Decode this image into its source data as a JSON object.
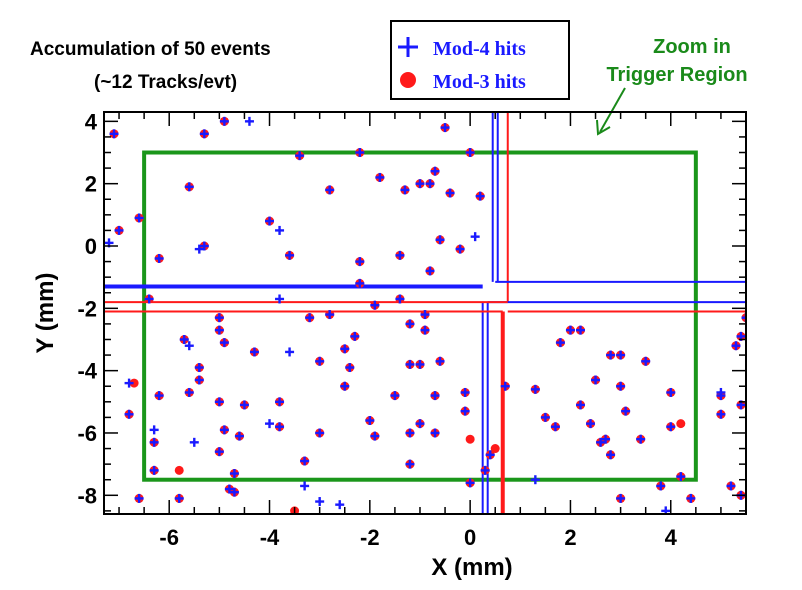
{
  "chart_data": {
    "type": "scatter",
    "xlabel": "X (mm)",
    "ylabel": "Y (mm)",
    "xlim": [
      -7.3,
      5.5
    ],
    "ylim": [
      -8.6,
      4.3
    ],
    "x_ticks": [
      -6,
      -4,
      -2,
      0,
      2,
      4
    ],
    "y_ticks": [
      4,
      2,
      0,
      -2,
      -4,
      -6,
      -8
    ],
    "x_tick_labels": [
      "-6",
      "-4",
      "-2",
      "0",
      "2",
      "4"
    ],
    "y_tick_labels": [
      "4",
      "2",
      "0",
      "-2",
      "-4",
      "-6",
      "-8"
    ],
    "grid": false,
    "annotation_lines": [
      "Accumulation of 50 events",
      "(~12 Tracks/evt)"
    ],
    "legend": {
      "position": "top-center",
      "entries": [
        {
          "label": "Mod-4 hits",
          "marker": "plus",
          "color": "#1a1aff"
        },
        {
          "label": "Mod-3 hits",
          "marker": "circle",
          "color": "#ff1a1a"
        }
      ]
    },
    "zoom_label_lines": [
      "Zoom in",
      "Trigger Region"
    ],
    "colors": {
      "mod4": "#1a1aff",
      "mod3": "#ff1a1a",
      "region": "#1a961a"
    },
    "trigger_region": {
      "x0": -6.5,
      "x1": 4.5,
      "y0": -7.5,
      "y1": 3.0
    },
    "series": [
      {
        "name": "Mod-4 hits",
        "marker": "plus",
        "points": [
          [
            -7.1,
            3.6
          ],
          [
            -5.3,
            3.6
          ],
          [
            -4.9,
            4.0
          ],
          [
            -4.4,
            4.0
          ],
          [
            -3.4,
            2.9
          ],
          [
            -2.2,
            3.0
          ],
          [
            -0.5,
            3.8
          ],
          [
            0.0,
            3.0
          ],
          [
            -5.6,
            1.9
          ],
          [
            -2.8,
            1.8
          ],
          [
            -1.8,
            2.2
          ],
          [
            -1.3,
            1.8
          ],
          [
            -1.0,
            2.0
          ],
          [
            -0.8,
            2.0
          ],
          [
            -0.7,
            2.4
          ],
          [
            -0.4,
            1.7
          ],
          [
            0.2,
            1.6
          ],
          [
            -7.2,
            0.1
          ],
          [
            -7.0,
            0.5
          ],
          [
            -6.6,
            0.9
          ],
          [
            -6.2,
            -0.4
          ],
          [
            -5.4,
            -0.1
          ],
          [
            -5.3,
            0.0
          ],
          [
            -4.0,
            0.8
          ],
          [
            -3.8,
            0.5
          ],
          [
            -3.6,
            -0.3
          ],
          [
            -2.2,
            -0.5
          ],
          [
            -1.4,
            -0.3
          ],
          [
            -0.8,
            -0.8
          ],
          [
            -0.6,
            0.2
          ],
          [
            -0.2,
            -0.1
          ],
          [
            0.1,
            0.3
          ],
          [
            -2.2,
            -1.2
          ],
          [
            -6.4,
            -1.7
          ],
          [
            -3.8,
            -1.7
          ],
          [
            -3.2,
            -2.3
          ],
          [
            -2.8,
            -2.2
          ],
          [
            -1.9,
            -1.9
          ],
          [
            -1.4,
            -1.7
          ],
          [
            -0.9,
            -2.2
          ],
          [
            -5.0,
            -2.3
          ],
          [
            -5.7,
            -3.0
          ],
          [
            -5.6,
            -3.2
          ],
          [
            -5.0,
            -2.7
          ],
          [
            -4.9,
            -3.1
          ],
          [
            -4.3,
            -3.4
          ],
          [
            -3.6,
            -3.4
          ],
          [
            -3.0,
            -3.7
          ],
          [
            -2.5,
            -3.3
          ],
          [
            -2.3,
            -2.9
          ],
          [
            -1.2,
            -2.5
          ],
          [
            -0.9,
            -2.7
          ],
          [
            -1.2,
            -3.8
          ],
          [
            -0.6,
            -3.7
          ],
          [
            -5.4,
            -3.9
          ],
          [
            -2.4,
            -3.9
          ],
          [
            -1.0,
            -3.8
          ],
          [
            -6.8,
            -4.4
          ],
          [
            -6.2,
            -4.8
          ],
          [
            -5.6,
            -4.7
          ],
          [
            -5.4,
            -4.3
          ],
          [
            -4.5,
            -5.1
          ],
          [
            -3.8,
            -5.0
          ],
          [
            -2.5,
            -4.5
          ],
          [
            -1.5,
            -4.8
          ],
          [
            -0.7,
            -4.8
          ],
          [
            -0.1,
            -4.7
          ],
          [
            -6.8,
            -5.4
          ],
          [
            -5.0,
            -5.0
          ],
          [
            -4.0,
            -5.7
          ],
          [
            -3.8,
            -5.8
          ],
          [
            -2.0,
            -5.6
          ],
          [
            -1.0,
            -5.7
          ],
          [
            -0.1,
            -5.3
          ],
          [
            -6.3,
            -5.9
          ],
          [
            -6.3,
            -6.3
          ],
          [
            -5.5,
            -6.3
          ],
          [
            -5.0,
            -6.6
          ],
          [
            -4.9,
            -5.9
          ],
          [
            -4.6,
            -6.1
          ],
          [
            -3.0,
            -6.0
          ],
          [
            -1.9,
            -6.1
          ],
          [
            -1.2,
            -6.0
          ],
          [
            -0.7,
            -6.0
          ],
          [
            -6.3,
            -7.2
          ],
          [
            -4.7,
            -7.3
          ],
          [
            -3.3,
            -6.9
          ],
          [
            -1.2,
            -7.0
          ],
          [
            0.3,
            -7.2
          ],
          [
            0.4,
            -6.7
          ],
          [
            0.0,
            -7.6
          ],
          [
            -6.6,
            -8.1
          ],
          [
            -5.8,
            -8.1
          ],
          [
            -4.8,
            -7.8
          ],
          [
            -4.7,
            -7.9
          ],
          [
            -3.3,
            -7.7
          ],
          [
            -3.0,
            -8.2
          ],
          [
            -2.6,
            -8.3
          ],
          [
            0.7,
            -4.5
          ],
          [
            1.3,
            -4.6
          ],
          [
            1.5,
            -5.5
          ],
          [
            1.7,
            -5.8
          ],
          [
            1.8,
            -3.1
          ],
          [
            2.0,
            -2.7
          ],
          [
            2.2,
            -2.7
          ],
          [
            2.2,
            -5.1
          ],
          [
            2.4,
            -5.7
          ],
          [
            2.5,
            -4.3
          ],
          [
            2.6,
            -6.3
          ],
          [
            2.7,
            -6.2
          ],
          [
            2.8,
            -3.5
          ],
          [
            2.8,
            -6.7
          ],
          [
            3.0,
            -3.5
          ],
          [
            3.1,
            -5.3
          ],
          [
            3.4,
            -6.2
          ],
          [
            3.5,
            -3.7
          ],
          [
            3.0,
            -4.5
          ],
          [
            1.3,
            -7.5
          ],
          [
            4.0,
            -4.7
          ],
          [
            4.0,
            -5.8
          ],
          [
            4.4,
            -8.1
          ],
          [
            4.2,
            -7.4
          ],
          [
            3.0,
            -8.1
          ],
          [
            3.8,
            -7.7
          ],
          [
            3.9,
            -8.5
          ],
          [
            5.0,
            -4.8
          ],
          [
            5.0,
            -5.4
          ],
          [
            5.0,
            -4.7
          ],
          [
            5.3,
            -3.2
          ],
          [
            5.4,
            -2.9
          ],
          [
            5.5,
            -2.3
          ],
          [
            5.4,
            -5.1
          ],
          [
            5.4,
            -8.0
          ],
          [
            5.2,
            -7.7
          ]
        ]
      },
      {
        "name": "Mod-3 hits",
        "marker": "circle",
        "points": [
          [
            -7.1,
            3.6
          ],
          [
            -5.3,
            3.6
          ],
          [
            -4.9,
            4.0
          ],
          [
            -3.4,
            2.9
          ],
          [
            -2.2,
            3.0
          ],
          [
            -0.5,
            3.8
          ],
          [
            0.0,
            3.0
          ],
          [
            -5.6,
            1.9
          ],
          [
            -2.8,
            1.8
          ],
          [
            -1.8,
            2.2
          ],
          [
            -1.3,
            1.8
          ],
          [
            -1.0,
            2.0
          ],
          [
            -0.8,
            2.0
          ],
          [
            -0.7,
            2.4
          ],
          [
            -0.4,
            1.7
          ],
          [
            0.2,
            1.6
          ],
          [
            -7.0,
            0.5
          ],
          [
            -6.6,
            0.9
          ],
          [
            -6.2,
            -0.4
          ],
          [
            -5.3,
            0.0
          ],
          [
            -4.0,
            0.8
          ],
          [
            -3.6,
            -0.3
          ],
          [
            -2.2,
            -0.5
          ],
          [
            -1.4,
            -0.3
          ],
          [
            -0.8,
            -0.8
          ],
          [
            -0.6,
            0.2
          ],
          [
            -0.2,
            -0.1
          ],
          [
            -2.2,
            -1.2
          ],
          [
            -7.5,
            1.5
          ],
          [
            -6.4,
            -1.7
          ],
          [
            -3.2,
            -2.3
          ],
          [
            -2.8,
            -2.2
          ],
          [
            -1.9,
            -1.9
          ],
          [
            -1.4,
            -1.7
          ],
          [
            -0.9,
            -2.2
          ],
          [
            -5.0,
            -2.3
          ],
          [
            -5.7,
            -3.0
          ],
          [
            -5.0,
            -2.7
          ],
          [
            -4.9,
            -3.1
          ],
          [
            -4.3,
            -3.4
          ],
          [
            -3.0,
            -3.7
          ],
          [
            -2.5,
            -3.3
          ],
          [
            -2.3,
            -2.9
          ],
          [
            -1.2,
            -2.5
          ],
          [
            -0.9,
            -2.7
          ],
          [
            -1.2,
            -3.8
          ],
          [
            -0.6,
            -3.7
          ],
          [
            -5.4,
            -3.9
          ],
          [
            -2.4,
            -3.9
          ],
          [
            -1.0,
            -3.8
          ],
          [
            -6.7,
            -4.4
          ],
          [
            -6.2,
            -4.8
          ],
          [
            -5.6,
            -4.7
          ],
          [
            -5.4,
            -4.3
          ],
          [
            -4.5,
            -5.1
          ],
          [
            -3.8,
            -5.0
          ],
          [
            -2.5,
            -4.5
          ],
          [
            -1.5,
            -4.8
          ],
          [
            -0.7,
            -4.8
          ],
          [
            -0.1,
            -4.7
          ],
          [
            -6.8,
            -5.4
          ],
          [
            -5.0,
            -5.0
          ],
          [
            -3.8,
            -5.8
          ],
          [
            -2.0,
            -5.6
          ],
          [
            -1.0,
            -5.7
          ],
          [
            -0.1,
            -5.3
          ],
          [
            -6.3,
            -6.3
          ],
          [
            -5.0,
            -6.6
          ],
          [
            -4.9,
            -5.9
          ],
          [
            -4.6,
            -6.1
          ],
          [
            -3.0,
            -6.0
          ],
          [
            -1.9,
            -6.1
          ],
          [
            -1.2,
            -6.0
          ],
          [
            -0.7,
            -6.0
          ],
          [
            0.0,
            -6.2
          ],
          [
            -6.3,
            -7.2
          ],
          [
            -5.8,
            -7.2
          ],
          [
            -4.7,
            -7.3
          ],
          [
            -3.3,
            -6.9
          ],
          [
            -1.2,
            -7.0
          ],
          [
            0.3,
            -7.2
          ],
          [
            0.4,
            -6.7
          ],
          [
            0.5,
            -6.5
          ],
          [
            0.0,
            -7.6
          ],
          [
            -6.6,
            -8.1
          ],
          [
            -5.8,
            -8.1
          ],
          [
            -4.8,
            -7.8
          ],
          [
            -4.7,
            -7.9
          ],
          [
            -3.5,
            -8.5
          ],
          [
            0.7,
            -4.5
          ],
          [
            1.3,
            -4.6
          ],
          [
            1.5,
            -5.5
          ],
          [
            1.7,
            -5.8
          ],
          [
            1.8,
            -3.1
          ],
          [
            2.0,
            -2.7
          ],
          [
            2.2,
            -2.7
          ],
          [
            2.2,
            -5.1
          ],
          [
            2.4,
            -5.7
          ],
          [
            2.5,
            -4.3
          ],
          [
            2.6,
            -6.3
          ],
          [
            2.7,
            -6.2
          ],
          [
            2.8,
            -3.5
          ],
          [
            2.8,
            -6.7
          ],
          [
            3.0,
            -3.5
          ],
          [
            3.1,
            -5.3
          ],
          [
            3.4,
            -6.2
          ],
          [
            3.5,
            -3.7
          ],
          [
            3.0,
            -4.5
          ],
          [
            4.0,
            -4.7
          ],
          [
            4.0,
            -5.8
          ],
          [
            4.2,
            -5.7
          ],
          [
            4.4,
            -8.1
          ],
          [
            4.2,
            -7.4
          ],
          [
            3.0,
            -8.1
          ],
          [
            3.8,
            -7.7
          ],
          [
            5.0,
            -4.8
          ],
          [
            5.0,
            -5.4
          ],
          [
            5.3,
            -3.2
          ],
          [
            5.4,
            -2.9
          ],
          [
            5.5,
            -2.3
          ],
          [
            5.4,
            -5.1
          ],
          [
            5.4,
            -8.0
          ],
          [
            5.2,
            -7.7
          ]
        ]
      }
    ],
    "reference_lines": [
      {
        "color": "blue",
        "orientation": "vertical",
        "x": 0.25,
        "y_from": -8.6,
        "y_to": -1.8
      },
      {
        "color": "blue",
        "orientation": "vertical",
        "x": 0.35,
        "y_from": -8.6,
        "y_to": -1.8
      },
      {
        "color": "blue",
        "orientation": "vertical",
        "x": 0.45,
        "y_from": -1.15,
        "y_to": 4.3
      },
      {
        "color": "blue",
        "orientation": "vertical",
        "x": 0.55,
        "y_from": -1.15,
        "y_to": 4.3
      },
      {
        "color": "red",
        "orientation": "vertical",
        "x": 0.65,
        "y_from": -8.6,
        "y_to": -2.1
      },
      {
        "color": "red",
        "orientation": "vertical",
        "x": 0.75,
        "y_from": -1.8,
        "y_to": 4.3
      },
      {
        "color": "blue",
        "orientation": "horizontal",
        "y": -1.15,
        "x_from": 0.5,
        "x_to": 5.5
      },
      {
        "color": "blue",
        "orientation": "horizontal",
        "y": -1.3,
        "x_from": -7.3,
        "x_to": 0.25
      },
      {
        "color": "blue",
        "orientation": "horizontal",
        "y": -1.8,
        "x_from": 0.35,
        "x_to": 5.5
      },
      {
        "color": "red",
        "orientation": "horizontal",
        "y": -1.8,
        "x_from": -7.3,
        "x_to": 0.75
      },
      {
        "color": "red",
        "orientation": "horizontal",
        "y": -2.1,
        "x_from": -7.3,
        "x_to": 0.65
      },
      {
        "color": "red",
        "orientation": "horizontal",
        "y": -2.1,
        "x_from": 0.75,
        "x_to": 5.5
      }
    ]
  }
}
